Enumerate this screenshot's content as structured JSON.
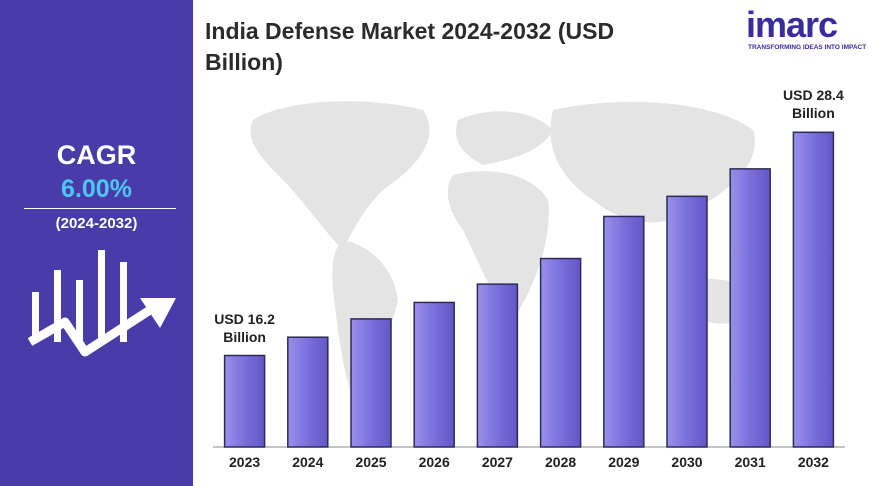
{
  "panel": {
    "label": "CAGR",
    "value": "6.00%",
    "period": "(2024-2032)"
  },
  "logo": {
    "name": "imarc",
    "tagline": "TRANSFORMING IDEAS INTO IMPACT"
  },
  "chart_data": {
    "type": "bar",
    "title": "India Defense Market 2024-2032 (USD Billion)",
    "categories": [
      "2023",
      "2024",
      "2025",
      "2026",
      "2027",
      "2028",
      "2029",
      "2030",
      "2031",
      "2032"
    ],
    "values": [
      16.2,
      17.2,
      18.2,
      19.1,
      20.1,
      21.5,
      23.8,
      24.9,
      26.4,
      28.4
    ],
    "value_labels": [
      "USD 16.2 Billion",
      null,
      null,
      null,
      null,
      null,
      null,
      null,
      null,
      "USD 28.4 Billion"
    ],
    "color": "#7b6fdb",
    "ylim": [
      11.2,
      30
    ]
  }
}
